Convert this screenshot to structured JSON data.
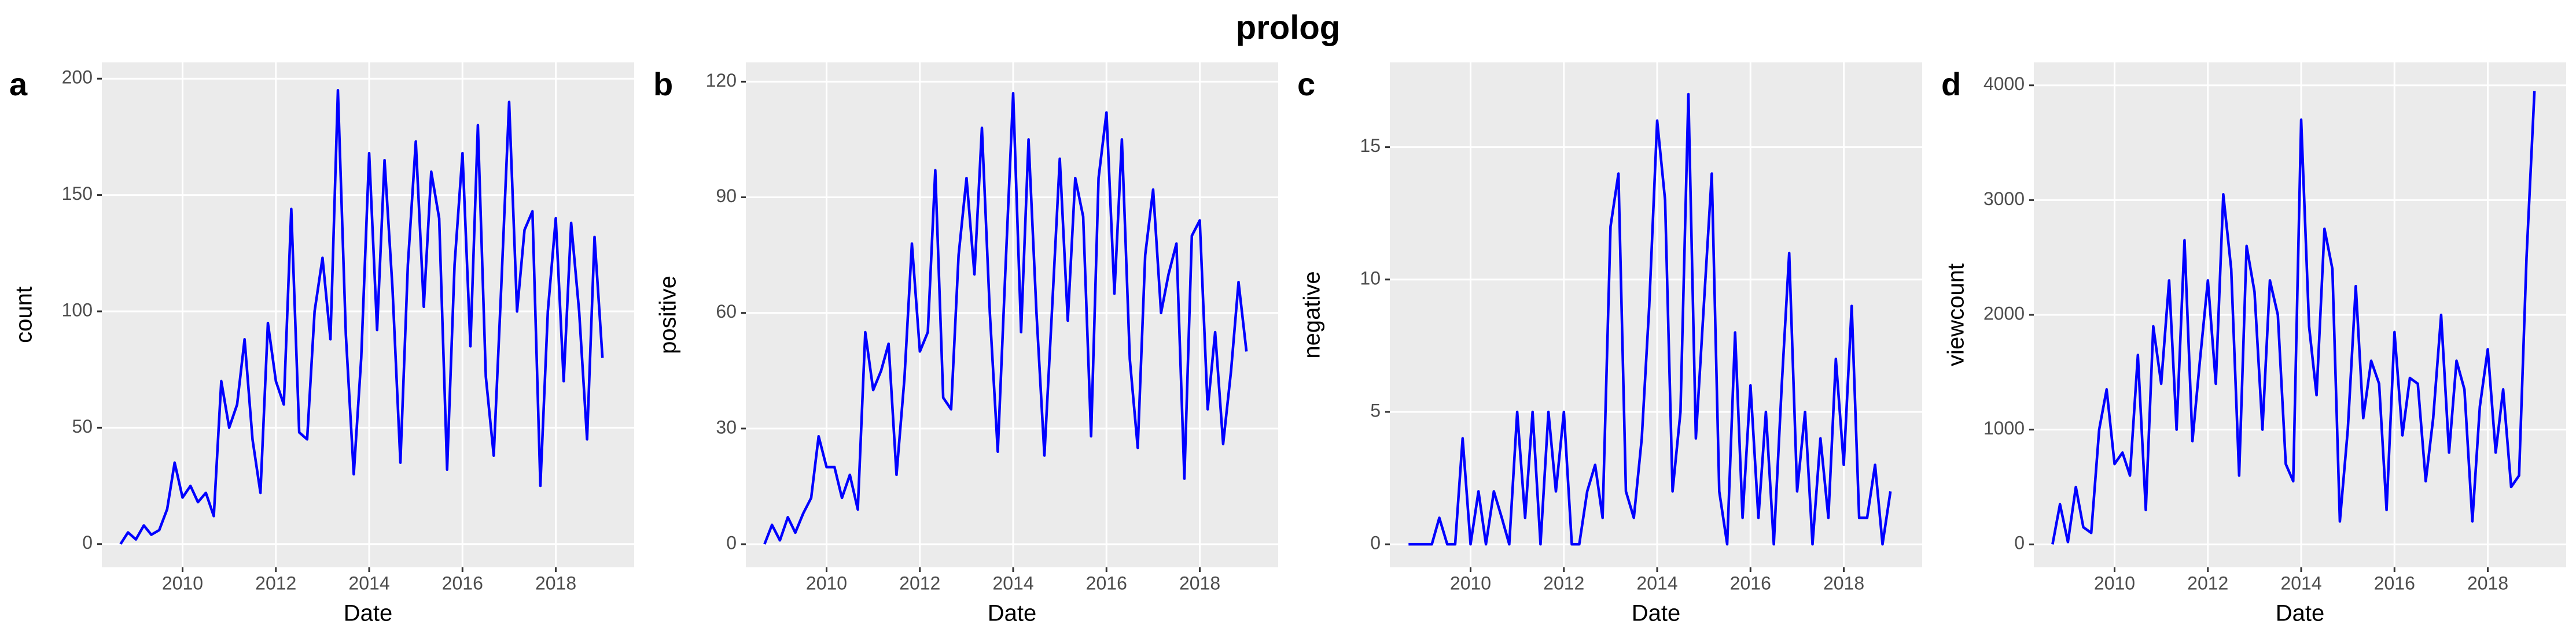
{
  "title": "prolog",
  "chart_data": [
    {
      "type": "line",
      "panel": "a",
      "x_label": "Date",
      "y_label": "count",
      "color": "#0000ff",
      "grid": true,
      "xlim": [
        2008.27,
        2019.68
      ],
      "xticks": [
        2010,
        2012,
        2014,
        2016,
        2018
      ],
      "ylim": [
        -10,
        207
      ],
      "yticks": [
        0,
        50,
        100,
        150,
        200
      ],
      "x": [
        2008.67,
        2008.83,
        2009,
        2009.17,
        2009.33,
        2009.5,
        2009.67,
        2009.83,
        2010,
        2010.17,
        2010.33,
        2010.5,
        2010.67,
        2010.83,
        2011,
        2011.17,
        2011.33,
        2011.5,
        2011.67,
        2011.83,
        2012,
        2012.17,
        2012.33,
        2012.5,
        2012.67,
        2012.83,
        2013,
        2013.17,
        2013.33,
        2013.5,
        2013.67,
        2013.83,
        2014,
        2014.17,
        2014.33,
        2014.5,
        2014.67,
        2014.83,
        2015,
        2015.17,
        2015.33,
        2015.5,
        2015.67,
        2015.83,
        2016,
        2016.17,
        2016.33,
        2016.5,
        2016.67,
        2016.83,
        2017,
        2017.17,
        2017.33,
        2017.5,
        2017.67,
        2017.83,
        2018,
        2018.17,
        2018.33,
        2018.5,
        2018.67,
        2018.83,
        2019
      ],
      "values": [
        0,
        5,
        2,
        8,
        4,
        6,
        15,
        35,
        20,
        25,
        18,
        22,
        12,
        70,
        50,
        60,
        88,
        45,
        22,
        95,
        70,
        60,
        144,
        48,
        45,
        100,
        123,
        88,
        195,
        90,
        30,
        80,
        168,
        92,
        165,
        110,
        35,
        120,
        173,
        102,
        160,
        140,
        32,
        120,
        168,
        85,
        180,
        72,
        38,
        110,
        190,
        100,
        135,
        143,
        25,
        100,
        140,
        70,
        138,
        100,
        45,
        132,
        80
      ]
    },
    {
      "type": "line",
      "panel": "b",
      "x_label": "Date",
      "y_label": "positive",
      "color": "#0000ff",
      "grid": true,
      "xlim": [
        2008.27,
        2019.68
      ],
      "xticks": [
        2010,
        2012,
        2014,
        2016,
        2018
      ],
      "ylim": [
        -6,
        125
      ],
      "yticks": [
        0,
        30,
        60,
        90,
        120
      ],
      "x": [
        2008.67,
        2008.83,
        2009,
        2009.17,
        2009.33,
        2009.5,
        2009.67,
        2009.83,
        2010,
        2010.17,
        2010.33,
        2010.5,
        2010.67,
        2010.83,
        2011,
        2011.17,
        2011.33,
        2011.5,
        2011.67,
        2011.83,
        2012,
        2012.17,
        2012.33,
        2012.5,
        2012.67,
        2012.83,
        2013,
        2013.17,
        2013.33,
        2013.5,
        2013.67,
        2013.83,
        2014,
        2014.17,
        2014.33,
        2014.5,
        2014.67,
        2014.83,
        2015,
        2015.17,
        2015.33,
        2015.5,
        2015.67,
        2015.83,
        2016,
        2016.17,
        2016.33,
        2016.5,
        2016.67,
        2016.83,
        2017,
        2017.17,
        2017.33,
        2017.5,
        2017.67,
        2017.83,
        2018,
        2018.17,
        2018.33,
        2018.5,
        2018.67,
        2018.83,
        2019
      ],
      "values": [
        0,
        5,
        1,
        7,
        3,
        8,
        12,
        28,
        20,
        20,
        12,
        18,
        9,
        55,
        40,
        45,
        52,
        18,
        43,
        78,
        50,
        55,
        97,
        38,
        35,
        75,
        95,
        70,
        108,
        60,
        24,
        70,
        117,
        55,
        105,
        60,
        23,
        60,
        100,
        58,
        95,
        85,
        28,
        95,
        112,
        65,
        105,
        48,
        25,
        75,
        92,
        60,
        70,
        78,
        17,
        80,
        84,
        35,
        55,
        26,
        45,
        68,
        50
      ]
    },
    {
      "type": "line",
      "panel": "c",
      "x_label": "Date",
      "y_label": "negative",
      "color": "#0000ff",
      "grid": true,
      "xlim": [
        2008.27,
        2019.68
      ],
      "xticks": [
        2010,
        2012,
        2014,
        2016,
        2018
      ],
      "ylim": [
        -0.87,
        18.2
      ],
      "yticks": [
        0,
        5,
        10,
        15
      ],
      "x": [
        2008.67,
        2008.83,
        2009,
        2009.17,
        2009.33,
        2009.5,
        2009.67,
        2009.83,
        2010,
        2010.17,
        2010.33,
        2010.5,
        2010.67,
        2010.83,
        2011,
        2011.17,
        2011.33,
        2011.5,
        2011.67,
        2011.83,
        2012,
        2012.17,
        2012.33,
        2012.5,
        2012.67,
        2012.83,
        2013,
        2013.17,
        2013.33,
        2013.5,
        2013.67,
        2013.83,
        2014,
        2014.17,
        2014.33,
        2014.5,
        2014.67,
        2014.83,
        2015,
        2015.17,
        2015.33,
        2015.5,
        2015.67,
        2015.83,
        2016,
        2016.17,
        2016.33,
        2016.5,
        2016.67,
        2016.83,
        2017,
        2017.17,
        2017.33,
        2017.5,
        2017.67,
        2017.83,
        2018,
        2018.17,
        2018.33,
        2018.5,
        2018.67,
        2018.83,
        2019
      ],
      "values": [
        0,
        0,
        0,
        0,
        1,
        0,
        0,
        4,
        0,
        2,
        0,
        2,
        1,
        0,
        5,
        1,
        5,
        0,
        5,
        2,
        5,
        0,
        0,
        2,
        3,
        1,
        12,
        14,
        2,
        1,
        4,
        9,
        16,
        13,
        2,
        5,
        17,
        4,
        9,
        14,
        2,
        0,
        8,
        1,
        6,
        1,
        5,
        0,
        6,
        11,
        2,
        5,
        0,
        4,
        1,
        7,
        3,
        9,
        1,
        1,
        3,
        0,
        2
      ]
    },
    {
      "type": "line",
      "panel": "d",
      "x_label": "Date",
      "y_label": "viewcount",
      "color": "#0000ff",
      "grid": true,
      "xlim": [
        2008.27,
        2019.68
      ],
      "xticks": [
        2010,
        2012,
        2014,
        2016,
        2018
      ],
      "ylim": [
        -200,
        4200
      ],
      "yticks": [
        0,
        1000,
        2000,
        3000,
        4000
      ],
      "x": [
        2008.67,
        2008.83,
        2009,
        2009.17,
        2009.33,
        2009.5,
        2009.67,
        2009.83,
        2010,
        2010.17,
        2010.33,
        2010.5,
        2010.67,
        2010.83,
        2011,
        2011.17,
        2011.33,
        2011.5,
        2011.67,
        2011.83,
        2012,
        2012.17,
        2012.33,
        2012.5,
        2012.67,
        2012.83,
        2013,
        2013.17,
        2013.33,
        2013.5,
        2013.67,
        2013.83,
        2014,
        2014.17,
        2014.33,
        2014.5,
        2014.67,
        2014.83,
        2015,
        2015.17,
        2015.33,
        2015.5,
        2015.67,
        2015.83,
        2016,
        2016.17,
        2016.33,
        2016.5,
        2016.67,
        2016.83,
        2017,
        2017.17,
        2017.33,
        2017.5,
        2017.67,
        2017.83,
        2018,
        2018.17,
        2018.33,
        2018.5,
        2018.67,
        2018.83,
        2019
      ],
      "values": [
        0,
        350,
        20,
        500,
        150,
        100,
        1000,
        1350,
        700,
        800,
        600,
        1650,
        300,
        1900,
        1400,
        2300,
        1000,
        2650,
        900,
        1600,
        2300,
        1400,
        3050,
        2400,
        600,
        2600,
        2200,
        1000,
        2300,
        2000,
        700,
        550,
        3700,
        1900,
        1300,
        2750,
        2400,
        200,
        1000,
        2250,
        1100,
        1600,
        1400,
        300,
        1850,
        950,
        1450,
        1400,
        550,
        1100,
        2000,
        800,
        1600,
        1350,
        200,
        1200,
        1700,
        800,
        1350,
        500,
        600,
        2500,
        3950
      ]
    }
  ]
}
